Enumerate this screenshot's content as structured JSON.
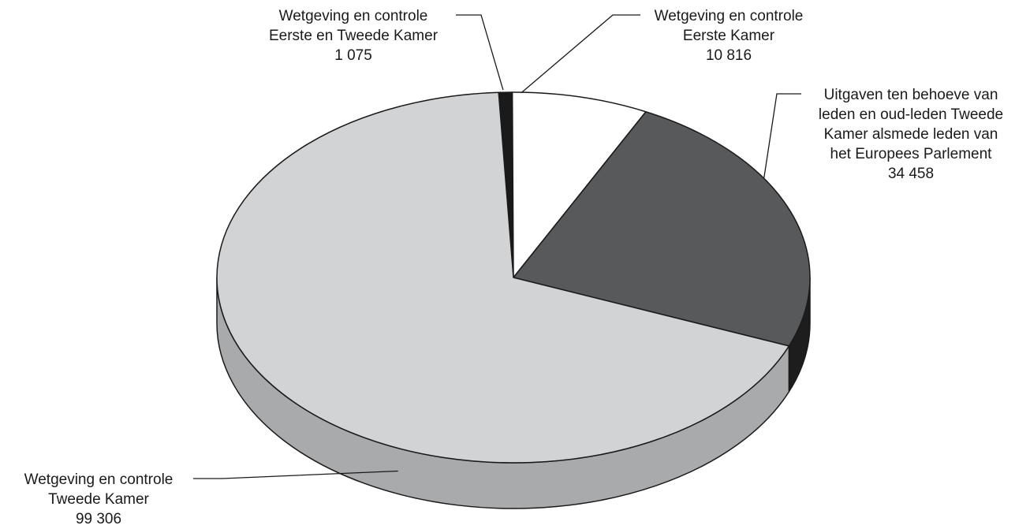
{
  "chart_data": {
    "type": "pie",
    "title": "",
    "three_d": true,
    "slices": [
      {
        "label_lines": [
          "Wetgeving en controle",
          "Eerste en Tweede Kamer"
        ],
        "value_text": "1 075",
        "value": 1075,
        "color": "#1a1a1a",
        "side_color": "#111111"
      },
      {
        "label_lines": [
          "Wetgeving en controle",
          "Eerste Kamer"
        ],
        "value_text": "10 816",
        "value": 10816,
        "color": "#ffffff",
        "side_color": "#e6e6e6"
      },
      {
        "label_lines": [
          "Uitgaven ten behoeve van",
          "leden en oud-leden Tweede",
          "Kamer alsmede leden van",
          "het Europees Parlement"
        ],
        "value_text": "34 458",
        "value": 34458,
        "color": "#58595b",
        "side_color": "#1d1d1d"
      },
      {
        "label_lines": [
          "Wetgeving en controle",
          "Tweede Kamer"
        ],
        "value_text": "99 306",
        "value": 99306,
        "color": "#d2d3d5",
        "side_color": "#a9aaac"
      }
    ]
  }
}
